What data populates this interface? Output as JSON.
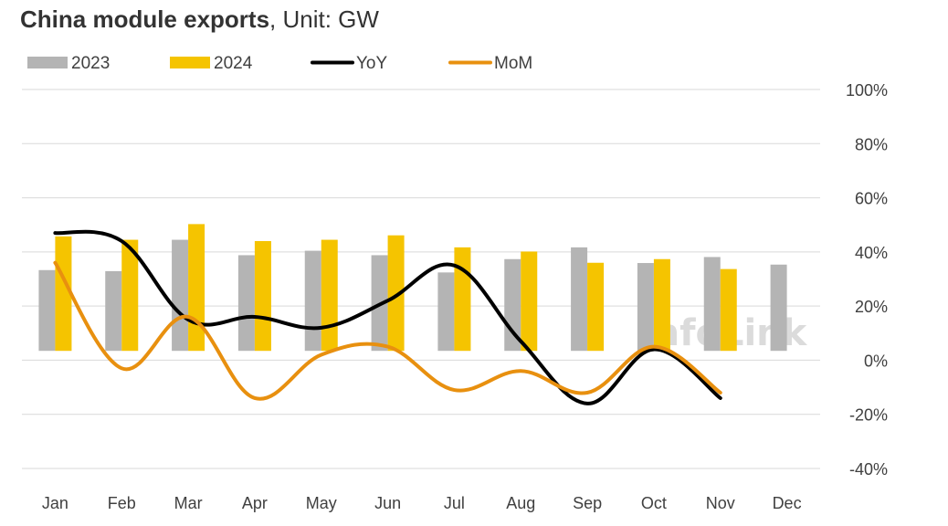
{
  "chart_data": {
    "type": "bar",
    "title": "China module exports",
    "subtitle": ", Unit: GW",
    "categories": [
      "Jan",
      "Feb",
      "Mar",
      "Apr",
      "May",
      "Jun",
      "Jul",
      "Aug",
      "Sep",
      "Oct",
      "Nov",
      "Dec"
    ],
    "bar_axis_range": [
      -45,
      100
    ],
    "y2_ticks": [
      "100%",
      "80%",
      "60%",
      "40%",
      "20%",
      "0%",
      "-20%",
      "-40%"
    ],
    "y2_range": [
      -0.4,
      1.0
    ],
    "series": [
      {
        "name": "2023",
        "type": "bar",
        "color": "#b4b4b4",
        "values": [
          30.9,
          30.5,
          42.5,
          36.6,
          38.3,
          36.6,
          30.0,
          35.1,
          39.6,
          33.6,
          35.9,
          33.0
        ]
      },
      {
        "name": "2024",
        "type": "bar",
        "color": "#f5c400",
        "values": [
          43.8,
          42.5,
          48.5,
          42.0,
          42.5,
          44.2,
          39.6,
          38.0,
          33.7,
          35.1,
          31.3,
          null
        ]
      },
      {
        "name": "YoY",
        "type": "line",
        "axis": "right",
        "color": "#000000",
        "values": [
          0.47,
          0.44,
          0.15,
          0.16,
          0.12,
          0.22,
          0.35,
          0.07,
          -0.16,
          0.04,
          -0.14,
          null
        ]
      },
      {
        "name": "MoM",
        "type": "line",
        "axis": "right",
        "color": "#e8900f",
        "values": [
          0.36,
          -0.03,
          0.16,
          -0.14,
          0.02,
          0.05,
          -0.11,
          -0.04,
          -0.12,
          0.05,
          -0.12,
          null
        ]
      }
    ],
    "grid": true,
    "legend": "top-left",
    "watermark": "InfoLink"
  }
}
